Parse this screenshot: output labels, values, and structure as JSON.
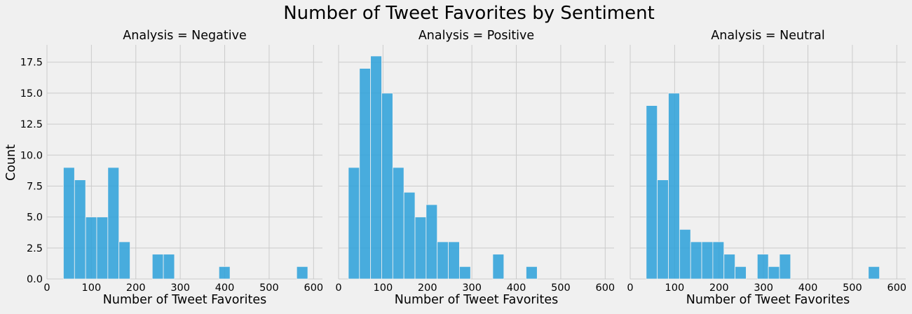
{
  "chart_data": {
    "type": "bar",
    "subtype": "faceted-histogram",
    "title": "Number of Tweet Favorites by Sentiment",
    "xlabel": "Number of Tweet Favorites",
    "ylabel": "Count",
    "xlim": [
      0,
      620
    ],
    "ylim": [
      0,
      18.9
    ],
    "x_ticks": [
      0,
      100,
      200,
      300,
      400,
      500,
      600
    ],
    "y_ticks": [
      0.0,
      2.5,
      5.0,
      7.5,
      10.0,
      12.5,
      15.0,
      17.5
    ],
    "y_tick_labels": [
      "0.0",
      "2.5",
      "5.0",
      "7.5",
      "10.0",
      "12.5",
      "15.0",
      "17.5"
    ],
    "grid": true,
    "bar_color": "#30a2da",
    "panels": [
      {
        "title": "Analysis = Negative",
        "bins": [
          {
            "x0": 37,
            "x1": 62,
            "count": 9
          },
          {
            "x0": 62,
            "x1": 87,
            "count": 8
          },
          {
            "x0": 87,
            "x1": 112,
            "count": 5
          },
          {
            "x0": 112,
            "x1": 137,
            "count": 5
          },
          {
            "x0": 137,
            "x1": 162,
            "count": 9
          },
          {
            "x0": 162,
            "x1": 187,
            "count": 3
          },
          {
            "x0": 237,
            "x1": 262,
            "count": 2
          },
          {
            "x0": 262,
            "x1": 287,
            "count": 2
          },
          {
            "x0": 387,
            "x1": 412,
            "count": 1
          },
          {
            "x0": 562,
            "x1": 587,
            "count": 1
          }
        ]
      },
      {
        "title": "Analysis = Positive",
        "bins": [
          {
            "x0": 22,
            "x1": 47,
            "count": 9
          },
          {
            "x0": 47,
            "x1": 72,
            "count": 17
          },
          {
            "x0": 72,
            "x1": 97,
            "count": 18
          },
          {
            "x0": 97,
            "x1": 122,
            "count": 15
          },
          {
            "x0": 122,
            "x1": 147,
            "count": 9
          },
          {
            "x0": 147,
            "x1": 172,
            "count": 7
          },
          {
            "x0": 172,
            "x1": 197,
            "count": 5
          },
          {
            "x0": 197,
            "x1": 222,
            "count": 6
          },
          {
            "x0": 222,
            "x1": 247,
            "count": 3
          },
          {
            "x0": 247,
            "x1": 272,
            "count": 3
          },
          {
            "x0": 272,
            "x1": 297,
            "count": 1
          },
          {
            "x0": 347,
            "x1": 372,
            "count": 2
          },
          {
            "x0": 422,
            "x1": 447,
            "count": 1
          }
        ]
      },
      {
        "title": "Analysis = Neutral",
        "bins": [
          {
            "x0": 36,
            "x1": 61,
            "count": 14
          },
          {
            "x0": 61,
            "x1": 86,
            "count": 8
          },
          {
            "x0": 86,
            "x1": 111,
            "count": 15
          },
          {
            "x0": 111,
            "x1": 136,
            "count": 4
          },
          {
            "x0": 136,
            "x1": 161,
            "count": 3
          },
          {
            "x0": 161,
            "x1": 186,
            "count": 3
          },
          {
            "x0": 186,
            "x1": 211,
            "count": 3
          },
          {
            "x0": 211,
            "x1": 236,
            "count": 2
          },
          {
            "x0": 236,
            "x1": 261,
            "count": 1
          },
          {
            "x0": 286,
            "x1": 311,
            "count": 2
          },
          {
            "x0": 311,
            "x1": 336,
            "count": 1
          },
          {
            "x0": 336,
            "x1": 361,
            "count": 2
          },
          {
            "x0": 536,
            "x1": 561,
            "count": 1
          }
        ]
      }
    ]
  }
}
